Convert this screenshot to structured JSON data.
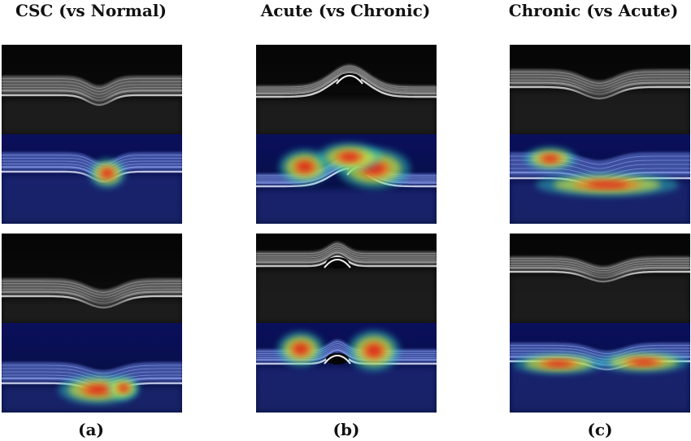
{
  "columns": [
    {
      "title": "CSC (vs Normal)",
      "caption": "(a)"
    },
    {
      "title": "Acute (vs Chronic)",
      "caption": "(b)"
    },
    {
      "title": "Chronic (vs Acute)",
      "caption": "(c)"
    }
  ]
}
